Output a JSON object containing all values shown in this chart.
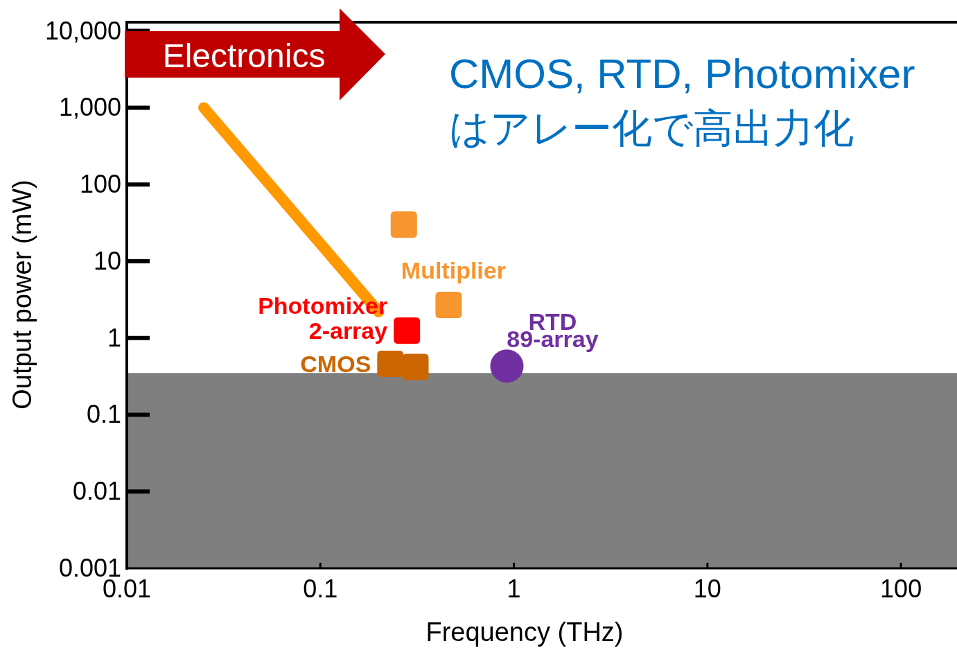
{
  "chart_data": {
    "type": "scatter",
    "xlabel": "Frequency (THz)",
    "ylabel": "Output power (mW)",
    "log": "xy",
    "xlim": [
      0.01,
      190
    ],
    "ylim": [
      0.001,
      13000
    ],
    "xticks": [
      0.01,
      0.1,
      1,
      10,
      100
    ],
    "yticks": [
      0.001,
      0.01,
      0.1,
      1,
      10,
      100,
      {
        "value": 1000,
        "label": "1,000"
      },
      {
        "value": 10000,
        "label": "10,000"
      }
    ],
    "grid": false,
    "marker": "square",
    "series": [
      {
        "type": "line",
        "color": "#ff9900",
        "x": [
          0.025,
          0.2
        ],
        "values": [
          1000,
          2.2
        ],
        "marker": "none"
      },
      {
        "name": "Multiplier",
        "color": "#f7952f",
        "x": [
          0.27,
          0.46
        ],
        "values": [
          30,
          2.7
        ]
      },
      {
        "name": "Photomixer 2-array",
        "color": "#ff0000",
        "x": [
          0.28
        ],
        "values": [
          1.25
        ]
      },
      {
        "name": "CMOS",
        "color": "#cc6600",
        "x": [
          0.23,
          0.31
        ],
        "values": [
          0.46,
          0.42
        ]
      },
      {
        "name": "RTD 89-array",
        "color": "#7030a0",
        "x": [
          0.92
        ],
        "values": [
          0.43
        ],
        "marker": "circle"
      }
    ],
    "bands": [
      {
        "axis": "y",
        "from": 0.001,
        "to": 0.35,
        "color": "#7f7f7f"
      }
    ],
    "annotations": [
      "Electronics",
      "CMOS, RTD, Photomixer",
      "はアレー化で高出力化"
    ]
  }
}
